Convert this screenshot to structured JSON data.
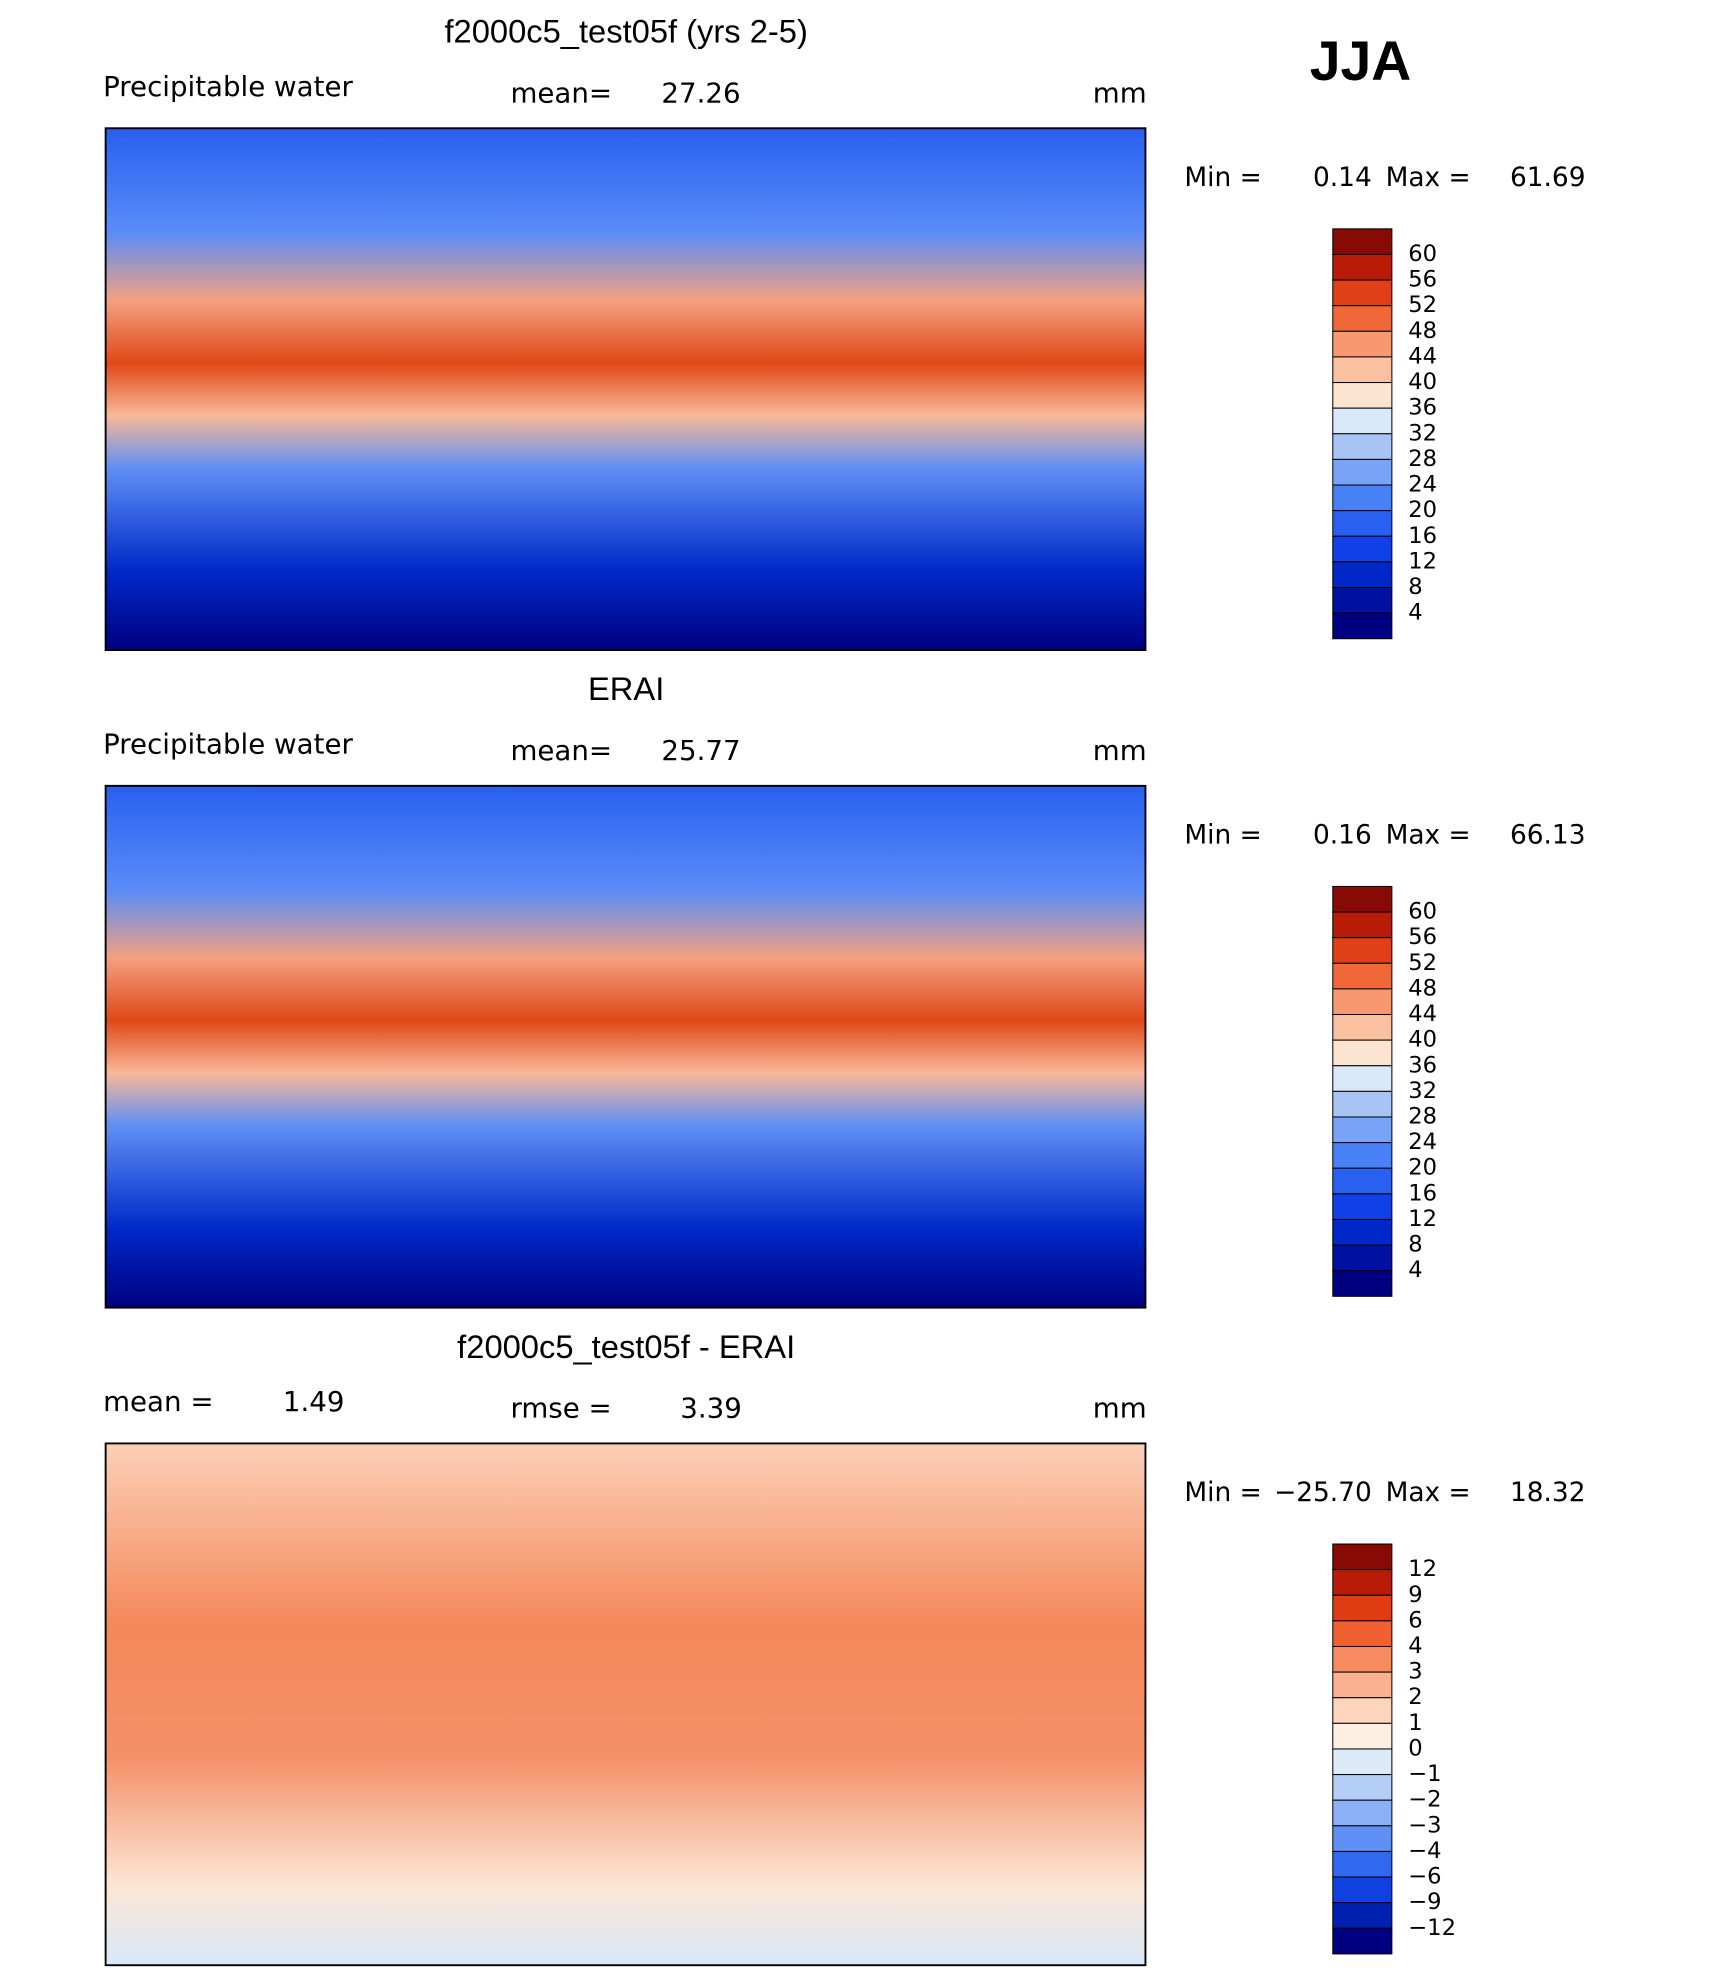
{
  "page_title": "JJA",
  "panels": [
    {
      "title": "f2000c5_test05f (yrs 2-5)",
      "left": {
        "label": "Precipitable water"
      },
      "center": {
        "label": "mean=",
        "value": "27.26"
      },
      "unit": "mm",
      "min_label": "Min =",
      "min": "0.14",
      "max_label": "Max =",
      "max": "61.69",
      "colorbar": {
        "levels": [
          60,
          56,
          52,
          48,
          44,
          40,
          36,
          32,
          28,
          24,
          20,
          16,
          12,
          8,
          4
        ],
        "colors": [
          "#880a04",
          "#b81c08",
          "#e04018",
          "#f06838",
          "#f89870",
          "#fbc0a0",
          "#fde4d0",
          "#d8e8f8",
          "#a8c4f5",
          "#78a4f8",
          "#4880f5",
          "#2860f0",
          "#1040e8",
          "#0028c8",
          "#0010a0",
          "#000080"
        ]
      }
    },
    {
      "title": "ERAI",
      "left": {
        "label": "Precipitable water"
      },
      "center": {
        "label": "mean=",
        "value": "25.77"
      },
      "unit": "mm",
      "min_label": "Min =",
      "min": "0.16",
      "max_label": "Max =",
      "max": "66.13",
      "colorbar": {
        "levels": [
          60,
          56,
          52,
          48,
          44,
          40,
          36,
          32,
          28,
          24,
          20,
          16,
          12,
          8,
          4
        ],
        "colors": [
          "#880a04",
          "#b81c08",
          "#e04018",
          "#f06838",
          "#f89870",
          "#fbc0a0",
          "#fde4d0",
          "#d8e8f8",
          "#a8c4f5",
          "#78a4f8",
          "#4880f5",
          "#2860f0",
          "#1040e8",
          "#0028c8",
          "#0010a0",
          "#000080"
        ]
      }
    },
    {
      "title": "f2000c5_test05f - ERAI",
      "left": {
        "label": "mean =",
        "value": "1.49"
      },
      "center": {
        "label": "rmse =",
        "value": "3.39"
      },
      "unit": "mm",
      "min_label": "Min =",
      "min": "−25.70",
      "max_label": "Max =",
      "max": "18.32",
      "colorbar": {
        "levels": [
          12,
          9,
          6,
          4,
          3,
          2,
          1,
          0,
          {
            "value": -1,
            "label": "−1"
          },
          {
            "value": -2,
            "label": "−2"
          },
          {
            "value": -3,
            "label": "−3"
          },
          {
            "value": -4,
            "label": "−4"
          },
          {
            "value": -6,
            "label": "−6"
          },
          {
            "value": -9,
            "label": "−9"
          },
          {
            "value": -12,
            "label": "−12"
          }
        ],
        "colors": [
          "#880a04",
          "#b81c08",
          "#e03c14",
          "#f06030",
          "#f88a60",
          "#fbb090",
          "#fdd4bc",
          "#fdeee2",
          "#dceaf8",
          "#b4cef8",
          "#8cb0f8",
          "#6090f5",
          "#3068f0",
          "#1040e0",
          "#0020b0",
          "#000080"
        ]
      }
    }
  ]
}
